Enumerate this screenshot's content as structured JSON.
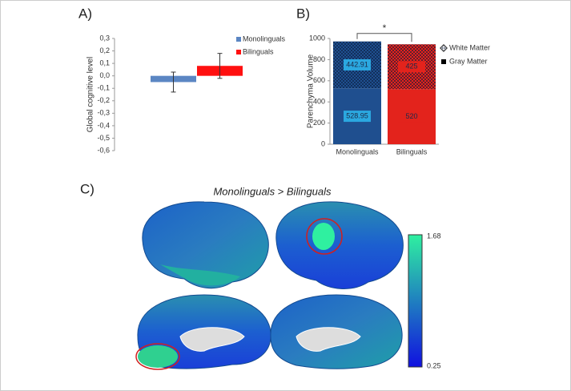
{
  "chart_data": [
    {
      "type": "bar",
      "title": "A)",
      "ylabel": "Global cognitive level",
      "categories": [
        null
      ],
      "series": [
        {
          "name": "Monolinguals",
          "color": "#5b86c3",
          "values": [
            -0.05
          ],
          "errors": [
            0.08
          ]
        },
        {
          "name": "Bilinguals",
          "color": "#ff1010",
          "values": [
            0.08
          ],
          "errors": [
            0.1
          ]
        }
      ],
      "ylim": [
        -0.6,
        0.3
      ],
      "yticks": [
        {
          "value": 0.3,
          "label": "0,3"
        },
        {
          "value": 0.2,
          "label": "0,2"
        },
        {
          "value": 0.1,
          "label": "0,1"
        },
        {
          "value": 0,
          "label": "0,0"
        },
        {
          "value": -0.1,
          "label": "-0,1"
        },
        {
          "value": -0.2,
          "label": "-0,2"
        },
        {
          "value": -0.3,
          "label": "-0,3"
        },
        {
          "value": -0.4,
          "label": "-0,4"
        },
        {
          "value": -0.5,
          "label": "-0,5"
        },
        {
          "value": -0.6,
          "label": "-0,6"
        }
      ]
    },
    {
      "type": "stacked_bar",
      "title": "B)",
      "ylabel": "Parenchyma Volume",
      "categories": [
        "Monolinguals",
        "Bilinguals"
      ],
      "bar_colors": [
        "#1f4f8f",
        "#e3231c"
      ],
      "label_colors": [
        "#2ba8e0",
        "#e3231c"
      ],
      "series": [
        {
          "name": "Gray Matter",
          "color": "#000000",
          "values": [
            528.95,
            520
          ]
        },
        {
          "name": "White Matter",
          "color": "#000000",
          "pattern": "checker",
          "values": [
            442.91,
            425
          ]
        }
      ],
      "ylim": [
        0,
        1000
      ],
      "yticks": [
        0,
        200,
        400,
        600,
        800,
        1000
      ],
      "annotation": "*"
    }
  ],
  "panel_c": {
    "label": "C)",
    "title": "Monolinguals > Bilinguals",
    "colorbar": {
      "max": 1.68,
      "min": 0.25,
      "colors": [
        "#2ff0a0",
        "#1010e0"
      ]
    }
  }
}
